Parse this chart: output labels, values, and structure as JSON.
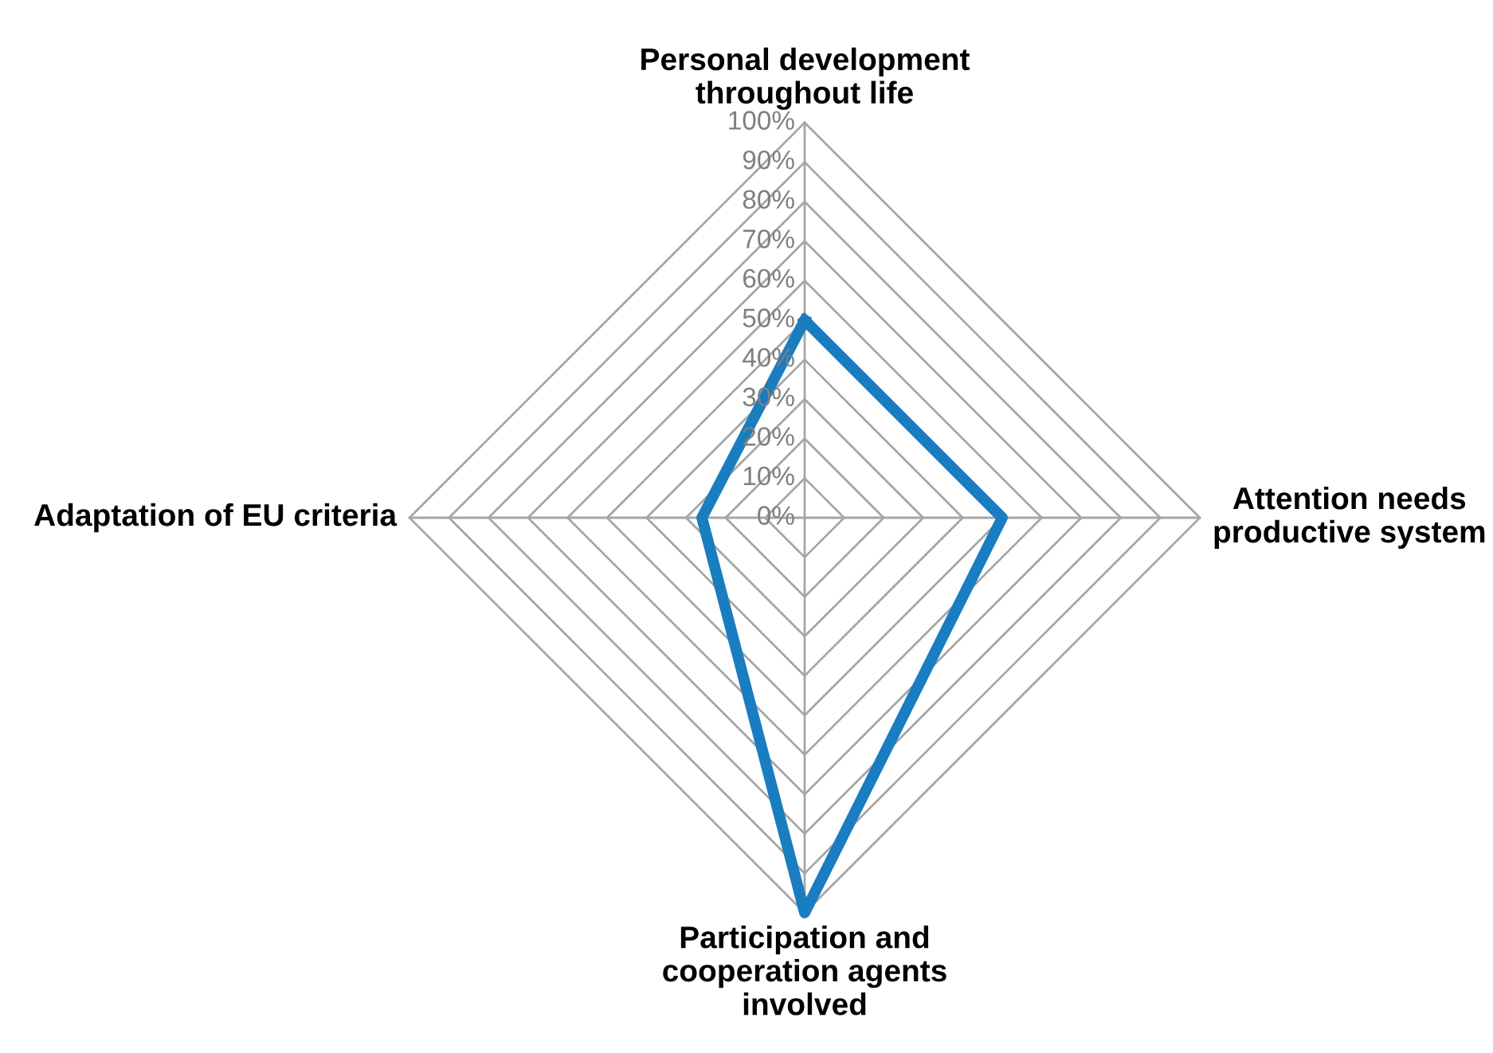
{
  "chart_data": {
    "type": "radar",
    "categories": [
      "Personal development\nthroughout life",
      "Attention needs\nproductive system",
      "Participation and\ncooperation agents\ninvolved",
      "Adaptation of EU criteria"
    ],
    "series": [
      {
        "color": "#1a7dc0",
        "values": [
          50,
          50,
          100,
          26
        ]
      }
    ],
    "ylim": [
      0,
      100
    ],
    "yticks": [
      {
        "value": 0,
        "label": "0%"
      },
      {
        "value": 10,
        "label": "10%"
      },
      {
        "value": 20,
        "label": "20%"
      },
      {
        "value": 30,
        "label": "30%"
      },
      {
        "value": 40,
        "label": "40%"
      },
      {
        "value": 50,
        "label": "50%"
      },
      {
        "value": 60,
        "label": "60%"
      },
      {
        "value": 70,
        "label": "70%"
      },
      {
        "value": 80,
        "label": "80%"
      },
      {
        "value": 90,
        "label": "90%"
      },
      {
        "value": 100,
        "label": "100%"
      }
    ],
    "grid": true,
    "marker": "none",
    "line_style": "solid",
    "legend": false
  }
}
